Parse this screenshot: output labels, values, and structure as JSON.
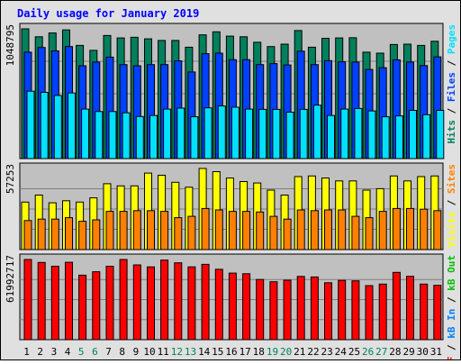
{
  "chart_data": {
    "type": "bar",
    "title": "Daily usage for January 2019",
    "colors": {
      "hits": "#00805c",
      "files": "#0040ff",
      "pages": "#00e0ff",
      "visits": "#ffff00",
      "sites": "#ff8000",
      "kbf": "#ff0000",
      "kbin": "#0080ff",
      "kbout": "#00c000",
      "title": "#0000ff",
      "plot_bg": "#c0c0c0",
      "frame_bg": "#e0e0e0",
      "weekday_label": "#000000",
      "weekend_label": "#00805c"
    },
    "days": [
      "1",
      "2",
      "3",
      "4",
      "5",
      "6",
      "7",
      "8",
      "9",
      "10",
      "11",
      "12",
      "13",
      "14",
      "15",
      "16",
      "17",
      "18",
      "19",
      "20",
      "21",
      "22",
      "23",
      "24",
      "25",
      "26",
      "27",
      "28",
      "29",
      "30",
      "31"
    ],
    "weekend_days": [
      5,
      6,
      12,
      13,
      19,
      20,
      26,
      27
    ],
    "panels": [
      {
        "id": "hits-files-pages",
        "ymax_label": "1048795",
        "ymax": 1048795,
        "legend": [
          {
            "text": "Hits",
            "color_key": "hits"
          },
          {
            "text": " / ",
            "color_key": "separator"
          },
          {
            "text": "Files",
            "color_key": "files"
          },
          {
            "text": " / ",
            "color_key": "separator"
          },
          {
            "text": "Pages",
            "color_key": "pages"
          }
        ],
        "series": [
          {
            "name": "Hits",
            "color_key": "hits",
            "values": [
              1048795,
              985000,
              1015000,
              1040000,
              915000,
              875000,
              995000,
              975000,
              980000,
              968000,
              955000,
              955000,
              900000,
              1000000,
              1025000,
              990000,
              985000,
              940000,
              905000,
              925000,
              1035000,
              900000,
              972000,
              975000,
              977000,
              860000,
              852000,
              922000,
              925000,
              915000,
              948000
            ]
          },
          {
            "name": "Files",
            "color_key": "files",
            "values": [
              860000,
              898000,
              870000,
              905000,
              750000,
              780000,
              820000,
              760000,
              750000,
              760000,
              760000,
              790000,
              700000,
              848000,
              852000,
              800000,
              800000,
              760000,
              768000,
              757000,
              868000,
              760000,
              792000,
              782000,
              780000,
              720000,
              735000,
              798000,
              780000,
              752000,
              822000
            ]
          },
          {
            "name": "Pages",
            "color_key": "pages",
            "values": [
              545000,
              535000,
              510000,
              530000,
              400000,
              380000,
              380000,
              370000,
              340000,
              348000,
              400000,
              408000,
              338000,
              410000,
              425000,
              415000,
              400000,
              398000,
              398000,
              375000,
              398000,
              432000,
              348000,
              400000,
              405000,
              385000,
              338000,
              345000,
              390000,
              355000,
              390000
            ]
          }
        ]
      },
      {
        "id": "visits-sites",
        "ymax_label": "57253",
        "ymax": 57253,
        "legend": [
          {
            "text": "Visits",
            "color_key": "visits"
          },
          {
            "text": " / ",
            "color_key": "separator"
          },
          {
            "text": "Sites",
            "color_key": "sites"
          }
        ],
        "series": [
          {
            "name": "Visits",
            "color_key": "visits",
            "values": [
              33500,
              38500,
              33000,
              34500,
              33500,
              36500,
              46500,
              45000,
              45000,
              54000,
              52500,
              47500,
              44000,
              57253,
              55000,
              50500,
              48000,
              47000,
              42000,
              38500,
              51500,
              52000,
              50500,
              48500,
              48500,
              42000,
              43000,
              52000,
              48500,
              51500,
              52000
            ]
          },
          {
            "name": "Sites",
            "color_key": "sites",
            "values": [
              20500,
              21500,
              21500,
              22500,
              20000,
              21000,
              27000,
              27000,
              27500,
              27500,
              27000,
              22500,
              23500,
              29000,
              28000,
              27000,
              27000,
              26500,
              23500,
              21500,
              28000,
              27500,
              28000,
              28000,
              23500,
              22500,
              27000,
              29000,
              29000,
              28500,
              27500
            ]
          }
        ]
      },
      {
        "id": "kbytes",
        "ymax_label": "61992717",
        "ymax": 61992717,
        "legend": [
          {
            "text": "kB F",
            "color_key": "kbf"
          },
          {
            "text": " / ",
            "color_key": "separator"
          },
          {
            "text": "kB In",
            "color_key": "kbin"
          },
          {
            "text": " / ",
            "color_key": "separator"
          },
          {
            "text": "kB Out",
            "color_key": "kbout"
          }
        ],
        "series": [
          {
            "name": "kB F",
            "color_key": "kbf",
            "values": [
              61992717,
              59700000,
              56800000,
              59800000,
              49900000,
              52500000,
              56800000,
              61992717,
              57800000,
              56300000,
              61500000,
              59400000,
              56300000,
              58200000,
              54400000,
              51500000,
              51000000,
              46500000,
              44800000,
              46000000,
              48900000,
              48500000,
              44000000,
              45800000,
              45500000,
              41800000,
              43000000,
              52000000,
              49000000,
              43000000,
              42000000
            ]
          }
        ]
      }
    ]
  }
}
